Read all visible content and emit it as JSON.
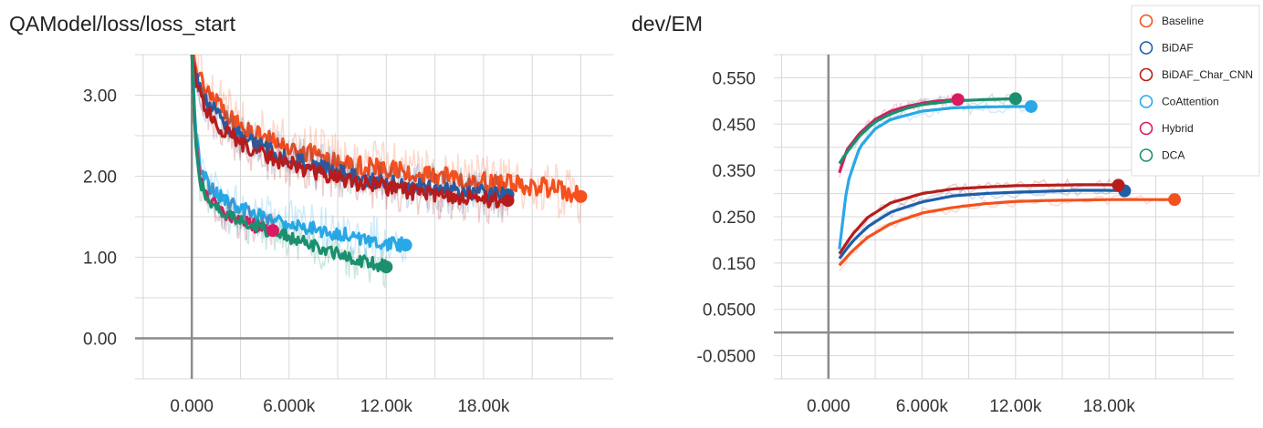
{
  "chart_data": [
    {
      "type": "line",
      "title": "QAModel/loss/loss_start",
      "xlim": [
        -3500,
        26000
      ],
      "ylim": [
        -0.5,
        3.5
      ],
      "x_ticks": [
        0,
        6000,
        12000,
        18000
      ],
      "x_tick_labels": [
        "0.000",
        "6.000k",
        "12.00k",
        "18.00k"
      ],
      "y_ticks": [
        0,
        1,
        2,
        3
      ],
      "y_tick_labels": [
        "0.00",
        "1.00",
        "2.00",
        "3.00"
      ],
      "grid": true,
      "series": [
        {
          "name": "Baseline",
          "color": "#f4511e",
          "x": [
            0,
            300,
            600,
            1000,
            2000,
            3000,
            4000,
            6000,
            8000,
            10000,
            12000,
            14000,
            16000,
            18000,
            20000,
            22000,
            24000
          ],
          "y": [
            3.5,
            3.35,
            3.2,
            3.05,
            2.8,
            2.62,
            2.5,
            2.35,
            2.25,
            2.15,
            2.08,
            2.02,
            1.98,
            1.93,
            1.9,
            1.86,
            1.75
          ],
          "noise": 0.12,
          "band": 0.35
        },
        {
          "name": "BiDAF",
          "color": "#1e5fa8",
          "x": [
            0,
            300,
            600,
            1000,
            2000,
            3000,
            4000,
            6000,
            8000,
            10000,
            12000,
            14000,
            16000,
            18000,
            19500
          ],
          "y": [
            3.5,
            3.2,
            3.05,
            2.9,
            2.65,
            2.5,
            2.38,
            2.22,
            2.1,
            2.0,
            1.92,
            1.87,
            1.83,
            1.8,
            1.77
          ],
          "noise": 0.1,
          "band": 0.3
        },
        {
          "name": "BiDAF_Char_CNN",
          "color": "#b71c1c",
          "x": [
            0,
            300,
            600,
            1000,
            2000,
            3000,
            4000,
            6000,
            8000,
            10000,
            12000,
            14000,
            16000,
            18000,
            19500
          ],
          "y": [
            3.5,
            3.1,
            2.95,
            2.8,
            2.55,
            2.42,
            2.3,
            2.15,
            2.03,
            1.93,
            1.86,
            1.8,
            1.75,
            1.72,
            1.7
          ],
          "noise": 0.1,
          "band": 0.3
        },
        {
          "name": "CoAttention",
          "color": "#29a8e8",
          "x": [
            0,
            200,
            500,
            1000,
            1500,
            2000,
            3000,
            4000,
            6000,
            8000,
            10000,
            12000,
            13200
          ],
          "y": [
            3.5,
            2.7,
            2.15,
            1.9,
            1.78,
            1.7,
            1.6,
            1.52,
            1.42,
            1.33,
            1.25,
            1.18,
            1.15
          ],
          "noise": 0.09,
          "band": 0.3
        },
        {
          "name": "Hybrid",
          "color": "#d81b60",
          "x": [
            0,
            200,
            500,
            1000,
            1500,
            2000,
            3000,
            4000,
            5000
          ],
          "y": [
            3.5,
            2.6,
            2.0,
            1.75,
            1.63,
            1.55,
            1.45,
            1.38,
            1.33
          ],
          "noise": 0.08,
          "band": 0.25
        },
        {
          "name": "DCA",
          "color": "#1b8f6e",
          "x": [
            0,
            200,
            500,
            1000,
            1500,
            2000,
            3000,
            4000,
            6000,
            8000,
            10000,
            12000
          ],
          "y": [
            3.5,
            2.55,
            1.95,
            1.72,
            1.62,
            1.55,
            1.45,
            1.38,
            1.25,
            1.1,
            0.98,
            0.88
          ],
          "noise": 0.08,
          "band": 0.25
        }
      ]
    },
    {
      "type": "line",
      "title": "dev/EM",
      "xlim": [
        -3500,
        26000
      ],
      "ylim": [
        -0.1,
        0.6
      ],
      "x_ticks": [
        0,
        6000,
        12000,
        18000
      ],
      "x_tick_labels": [
        "0.000",
        "6.000k",
        "12.00k",
        "18.00k"
      ],
      "y_ticks": [
        -0.05,
        0.05,
        0.15,
        0.25,
        0.35,
        0.45,
        0.55
      ],
      "y_tick_labels": [
        "-0.0500",
        "0.0500",
        "0.150",
        "0.250",
        "0.350",
        "0.450",
        "0.550"
      ],
      "grid": true,
      "legend_position": "top-right",
      "series": [
        {
          "name": "Baseline",
          "color": "#f4511e",
          "x": [
            700,
            1500,
            2500,
            4000,
            6000,
            8000,
            10000,
            12000,
            14000,
            16000,
            18000,
            20000,
            22200
          ],
          "y": [
            0.145,
            0.175,
            0.205,
            0.235,
            0.258,
            0.27,
            0.278,
            0.283,
            0.285,
            0.286,
            0.287,
            0.287,
            0.287
          ],
          "band": 0.012
        },
        {
          "name": "BiDAF",
          "color": "#1e5fa8",
          "x": [
            700,
            1500,
            2500,
            4000,
            6000,
            8000,
            10000,
            12000,
            14000,
            16000,
            18000,
            19000
          ],
          "y": [
            0.16,
            0.195,
            0.228,
            0.26,
            0.282,
            0.295,
            0.3,
            0.303,
            0.305,
            0.307,
            0.307,
            0.306
          ],
          "band": 0.012
        },
        {
          "name": "BiDAF_Char_CNN",
          "color": "#b71c1c",
          "x": [
            700,
            1500,
            2500,
            4000,
            6000,
            8000,
            10000,
            12000,
            14000,
            16000,
            18000,
            18600
          ],
          "y": [
            0.17,
            0.21,
            0.248,
            0.28,
            0.3,
            0.31,
            0.314,
            0.317,
            0.318,
            0.319,
            0.319,
            0.318
          ],
          "band": 0.012
        },
        {
          "name": "CoAttention",
          "color": "#29a8e8",
          "x": [
            700,
            1200,
            2000,
            3000,
            4000,
            6000,
            8000,
            10000,
            12000,
            13000
          ],
          "y": [
            0.18,
            0.32,
            0.4,
            0.44,
            0.46,
            0.478,
            0.485,
            0.487,
            0.488,
            0.488
          ],
          "band": 0.015
        },
        {
          "name": "Hybrid",
          "color": "#d81b60",
          "x": [
            700,
            1200,
            2000,
            3000,
            4000,
            5000,
            6000,
            7000,
            8300
          ],
          "y": [
            0.345,
            0.395,
            0.43,
            0.46,
            0.478,
            0.488,
            0.495,
            0.5,
            0.503
          ],
          "band": 0.012
        },
        {
          "name": "DCA",
          "color": "#1b8f6e",
          "x": [
            700,
            1200,
            2000,
            3000,
            4000,
            5000,
            6000,
            8000,
            10000,
            12000
          ],
          "y": [
            0.365,
            0.39,
            0.425,
            0.455,
            0.472,
            0.484,
            0.492,
            0.5,
            0.503,
            0.505
          ],
          "band": 0.012
        }
      ]
    }
  ]
}
